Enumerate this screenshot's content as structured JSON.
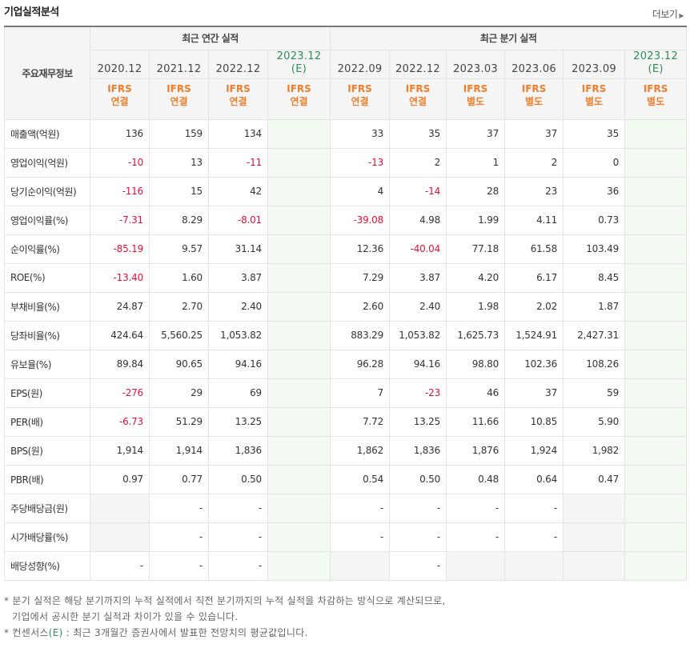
{
  "header": {
    "title": "기업실적분석",
    "more_label": "더보기"
  },
  "table": {
    "corner_label": "주요재무정보",
    "groups": {
      "annual": "최근 연간 실적",
      "quarterly": "최근 분기 실적"
    },
    "periods": [
      {
        "label": "2020.12",
        "estimate": false,
        "std_line1": "IFRS",
        "std_line2": "연결"
      },
      {
        "label": "2021.12",
        "estimate": false,
        "std_line1": "IFRS",
        "std_line2": "연결"
      },
      {
        "label": "2022.12",
        "estimate": false,
        "std_line1": "IFRS",
        "std_line2": "연결"
      },
      {
        "label": "2023.12",
        "estimate_mark": "(E)",
        "estimate": true,
        "std_line1": "IFRS",
        "std_line2": "연결"
      },
      {
        "label": "2022.09",
        "estimate": false,
        "std_line1": "IFRS",
        "std_line2": "연결"
      },
      {
        "label": "2022.12",
        "estimate": false,
        "std_line1": "IFRS",
        "std_line2": "연결"
      },
      {
        "label": "2023.03",
        "estimate": false,
        "std_line1": "IFRS",
        "std_line2": "별도"
      },
      {
        "label": "2023.06",
        "estimate": false,
        "std_line1": "IFRS",
        "std_line2": "별도"
      },
      {
        "label": "2023.09",
        "estimate": false,
        "std_line1": "IFRS",
        "std_line2": "별도"
      },
      {
        "label": "2023.12",
        "estimate_mark": "(E)",
        "estimate": true,
        "std_line1": "IFRS",
        "std_line2": "별도"
      }
    ],
    "rows": [
      {
        "label": "매출액(억원)",
        "values": [
          "136",
          "159",
          "134",
          "",
          "33",
          "35",
          "37",
          "37",
          "35",
          ""
        ]
      },
      {
        "label": "영업이익(억원)",
        "values": [
          "-10",
          "13",
          "-11",
          "",
          "-13",
          "2",
          "1",
          "2",
          "0",
          ""
        ]
      },
      {
        "label": "당기순이익(억원)",
        "values": [
          "-116",
          "15",
          "42",
          "",
          "4",
          "-14",
          "28",
          "23",
          "36",
          ""
        ]
      },
      {
        "label": "영업이익률(%)",
        "values": [
          "-7.31",
          "8.29",
          "-8.01",
          "",
          "-39.08",
          "4.98",
          "1.99",
          "4.11",
          "0.73",
          ""
        ]
      },
      {
        "label": "순이익률(%)",
        "values": [
          "-85.19",
          "9.57",
          "31.14",
          "",
          "12.36",
          "-40.04",
          "77.18",
          "61.58",
          "103.49",
          ""
        ]
      },
      {
        "label": "ROE(%)",
        "values": [
          "-13.40",
          "1.60",
          "3.87",
          "",
          "7.29",
          "3.87",
          "4.20",
          "6.17",
          "8.45",
          ""
        ]
      },
      {
        "label": "부채비율(%)",
        "values": [
          "24.87",
          "2.70",
          "2.40",
          "",
          "2.60",
          "2.40",
          "1.98",
          "2.02",
          "1.87",
          ""
        ]
      },
      {
        "label": "당좌비율(%)",
        "values": [
          "424.64",
          "5,560.25",
          "1,053.82",
          "",
          "883.29",
          "1,053.82",
          "1,625.73",
          "1,524.91",
          "2,427.31",
          ""
        ]
      },
      {
        "label": "유보율(%)",
        "values": [
          "89.84",
          "90.65",
          "94.16",
          "",
          "96.28",
          "94.16",
          "98.80",
          "102.36",
          "108.26",
          ""
        ]
      },
      {
        "label": "EPS(원)",
        "values": [
          "-276",
          "29",
          "69",
          "",
          "7",
          "-23",
          "46",
          "37",
          "59",
          ""
        ]
      },
      {
        "label": "PER(배)",
        "values": [
          "-6.73",
          "51.29",
          "13.25",
          "",
          "7.72",
          "13.25",
          "11.66",
          "10.85",
          "5.90",
          ""
        ]
      },
      {
        "label": "BPS(원)",
        "values": [
          "1,914",
          "1,914",
          "1,836",
          "",
          "1,862",
          "1,836",
          "1,876",
          "1,924",
          "1,982",
          ""
        ]
      },
      {
        "label": "PBR(배)",
        "values": [
          "0.97",
          "0.77",
          "0.50",
          "",
          "0.54",
          "0.50",
          "0.48",
          "0.64",
          "0.47",
          ""
        ]
      },
      {
        "label": "주당배당금(원)",
        "values": [
          null,
          "-",
          "-",
          "",
          "-",
          "-",
          "-",
          "-",
          null,
          ""
        ]
      },
      {
        "label": "시가배당률(%)",
        "values": [
          null,
          "-",
          "-",
          "",
          "-",
          "-",
          "-",
          "-",
          null,
          ""
        ]
      },
      {
        "label": "배당성향(%)",
        "values": [
          "-",
          "-",
          "-",
          "",
          null,
          "-",
          null,
          null,
          null,
          ""
        ]
      }
    ]
  },
  "notes": {
    "line1": "* 분기 실적은 해당 분기까지의 누적 실적에서 직전 분기까지의 누적 실적을 차감하는 방식으로 계산되므로,",
    "line2": "기업에서 공시한 분기 실적과 차이가 있을 수 있습니다.",
    "line3_prefix": "* 컨센서스",
    "line3_mark": "(E)",
    "line3_suffix": " : 최근 3개월간 증권사에서 발표한 전망치의 평균값입니다."
  }
}
